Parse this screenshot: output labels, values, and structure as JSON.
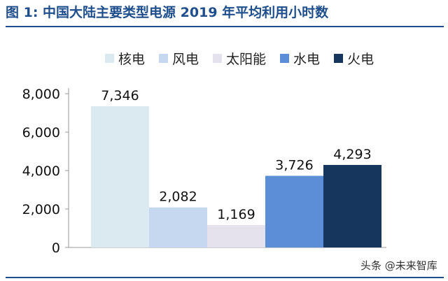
{
  "title": "图 1: 中国大陆主要类型电源 2019 年平均利用小时数",
  "watermark": "头条 @未来智库",
  "colors": {
    "title": "#1f4e8c",
    "rule": "#1f4e8c",
    "axis": "#999999",
    "tick_text": "#111111",
    "label_text": "#111111"
  },
  "chart_data": {
    "type": "bar",
    "categories": [
      "核电",
      "风电",
      "太阳能",
      "水电",
      "火电"
    ],
    "values": [
      7346,
      2082,
      1169,
      3726,
      4293
    ],
    "value_labels": [
      "7,346",
      "2,082",
      "1,169",
      "3,726",
      "4,293"
    ],
    "bar_colors": [
      "#dbeaf1",
      "#c6d8ef",
      "#e6e2ed",
      "#5b8ed6",
      "#17365d"
    ],
    "ylim": [
      0,
      8000
    ],
    "yticks": [
      0,
      2000,
      4000,
      6000,
      8000
    ],
    "ytick_labels": [
      "0",
      "2,000",
      "4,000",
      "6,000",
      "8,000"
    ],
    "grid": false,
    "legend": "top"
  }
}
